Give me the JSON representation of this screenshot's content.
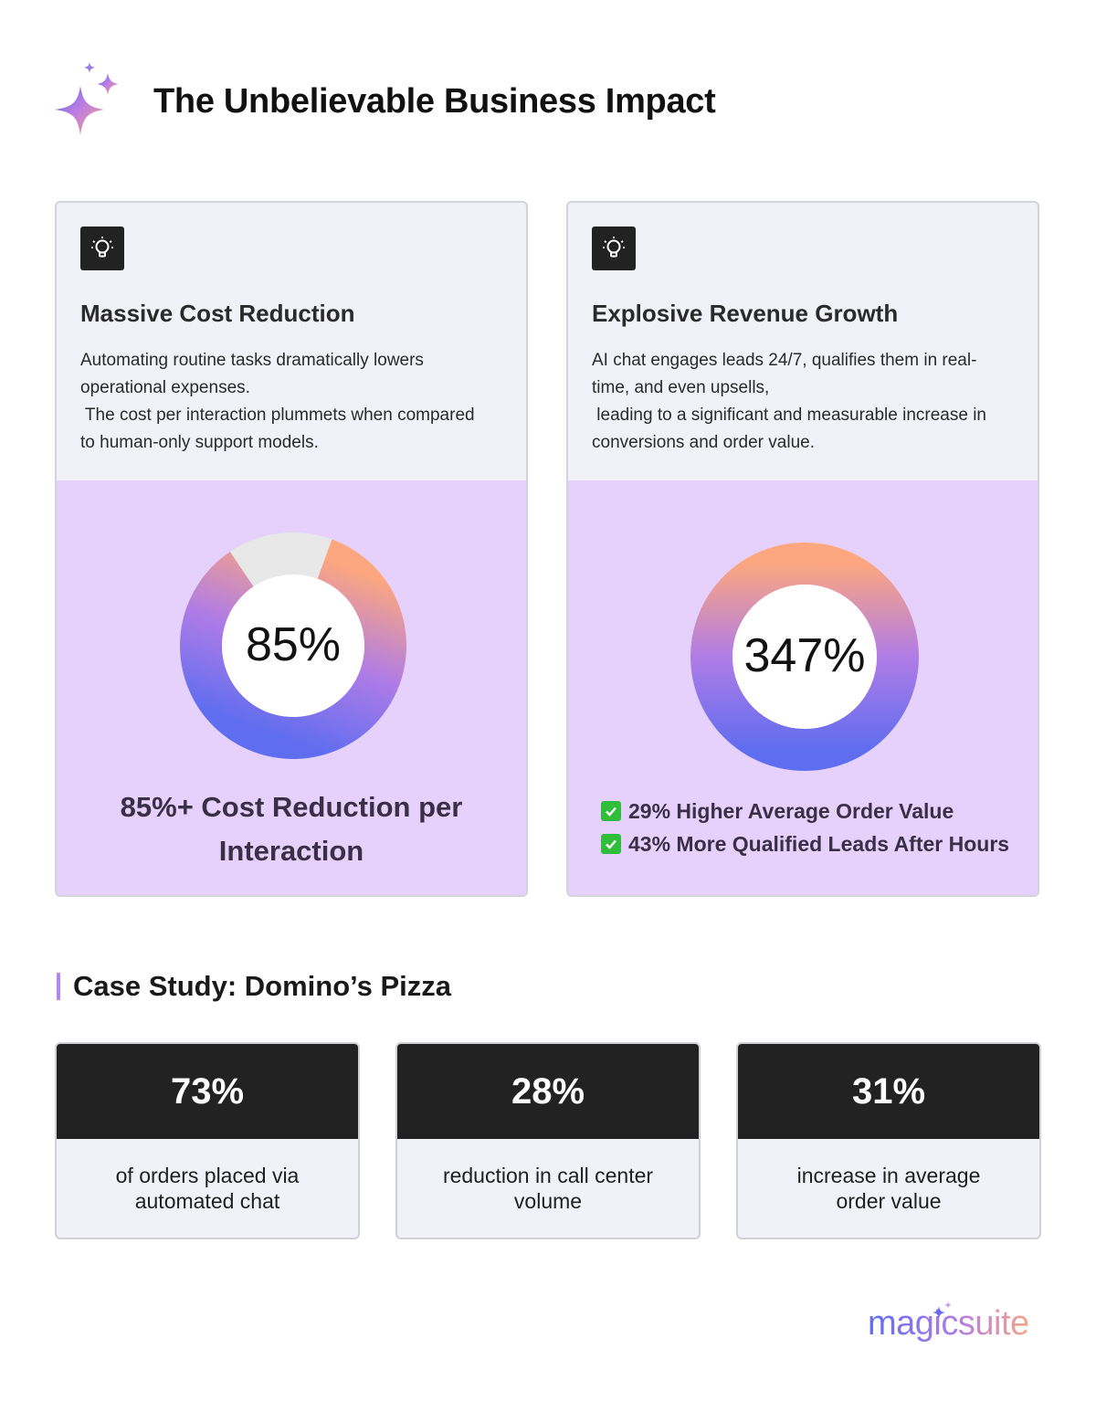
{
  "header": {
    "title": "The Unbelievable Business Impact",
    "icon": "sparkle-icon"
  },
  "cards": [
    {
      "icon": "lightbulb-icon",
      "title": "Massive Cost Reduction",
      "desc_lines": [
        "Automating routine tasks dramatically lowers",
        "operational expenses.",
        " The cost per interaction plummets when compared",
        "to human-only support models."
      ],
      "metric_label": "85%",
      "metric_fraction": 0.85,
      "caption_lines": [
        "85%+ Cost Reduction per",
        "Interaction"
      ]
    },
    {
      "icon": "lightbulb-icon",
      "title": "Explosive Revenue Growth",
      "desc_lines": [
        "AI chat engages leads 24/7, qualifies them in real-",
        "time, and even upsells,",
        " leading to a significant and measurable increase in",
        "conversions and order value."
      ],
      "metric_label": "347%",
      "metric_fraction": 1.0,
      "checks": [
        "29% Higher Average Order Value",
        "43% More Qualified Leads After Hours"
      ]
    }
  ],
  "case_study": {
    "title": "Case Study: Domino’s Pizza",
    "stats": [
      {
        "value": "73%",
        "label": "of orders placed via automated chat"
      },
      {
        "value": "28%",
        "label": "reduction in call center volume"
      },
      {
        "value": "31%",
        "label": "increase in average order value"
      }
    ]
  },
  "brand": {
    "name": "magicsuite"
  },
  "colors": {
    "accent_purple": "#e6d1fd",
    "gradient_start": "#5f6df0",
    "gradient_mid": "#b07ce6",
    "gradient_end": "#f6a683"
  }
}
